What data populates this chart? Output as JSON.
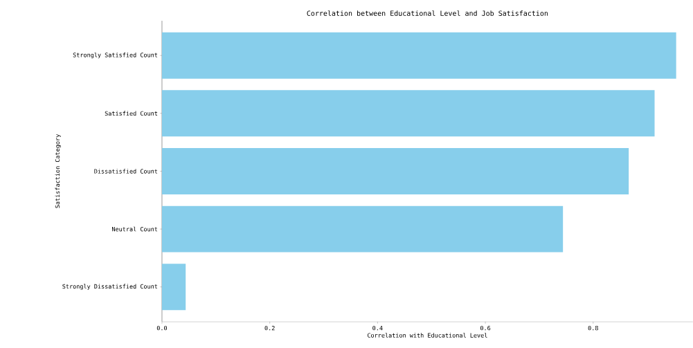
{
  "chart_data": {
    "type": "bar",
    "orientation": "horizontal",
    "title": "Correlation between Educational Level and Job Satisfaction",
    "xlabel": "Correlation with Educational Level",
    "ylabel": "Satisfaction Category",
    "categories": [
      "Strongly Satisfied Count",
      "Satisfied Count",
      "Dissatisfied Count",
      "Neutral Count",
      "Strongly Dissatisfied Count"
    ],
    "values": [
      0.954,
      0.914,
      0.866,
      0.744,
      0.044
    ],
    "color": "#87ceeb",
    "xlim": [
      0,
      0.985
    ],
    "xticks": [
      {
        "value": 0,
        "label": "0.0"
      },
      0.2,
      0.4,
      0.6,
      0.8
    ]
  }
}
